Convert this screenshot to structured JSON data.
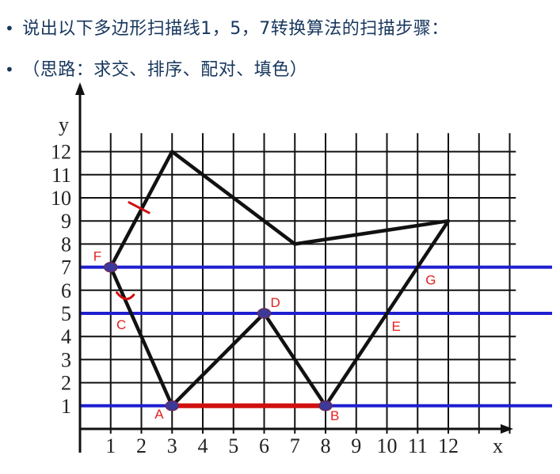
{
  "header": {
    "line1": {
      "bullet": "•",
      "text": "说出以下多边形扫描线1，5，7转换算法的扫描步骤："
    },
    "line2": {
      "bullet": "•",
      "text": "（思路：求交、排序、配对、填色）"
    }
  },
  "diagram": {
    "x_axis_label": "x",
    "y_axis_label": "y",
    "x_ticks": [
      "1",
      "2",
      "3",
      "4",
      "5",
      "6",
      "7",
      "8",
      "9",
      "10",
      "11",
      "12"
    ],
    "y_ticks": [
      "1",
      "2",
      "3",
      "4",
      "5",
      "6",
      "7",
      "8",
      "9",
      "10",
      "11",
      "12"
    ],
    "polygon": [
      {
        "x": 3,
        "y": 12
      },
      {
        "x": 7,
        "y": 8
      },
      {
        "x": 12,
        "y": 9
      },
      {
        "x": 8,
        "y": 1
      },
      {
        "x": 6,
        "y": 5
      },
      {
        "x": 3,
        "y": 1
      },
      {
        "x": 1,
        "y": 7
      }
    ],
    "scanlines": [
      1,
      5,
      7
    ],
    "scanline_color": "#1f1fd0",
    "fill_segment": {
      "y": 1,
      "x_from": 3,
      "x_to": 8,
      "color": "#d01010"
    },
    "points": [
      {
        "label": "A",
        "x": 3,
        "y": 1
      },
      {
        "label": "B",
        "x": 8,
        "y": 1
      },
      {
        "label": "C",
        "x": 1.6,
        "y": 5
      },
      {
        "label": "D",
        "x": 6,
        "y": 5
      },
      {
        "label": "E",
        "x": 10,
        "y": 5
      },
      {
        "label": "F",
        "x": 1,
        "y": 7
      },
      {
        "label": "G",
        "x": 11,
        "y": 7
      }
    ],
    "label_color": "#e0201f",
    "intersect_color": "#3a3a9a"
  }
}
